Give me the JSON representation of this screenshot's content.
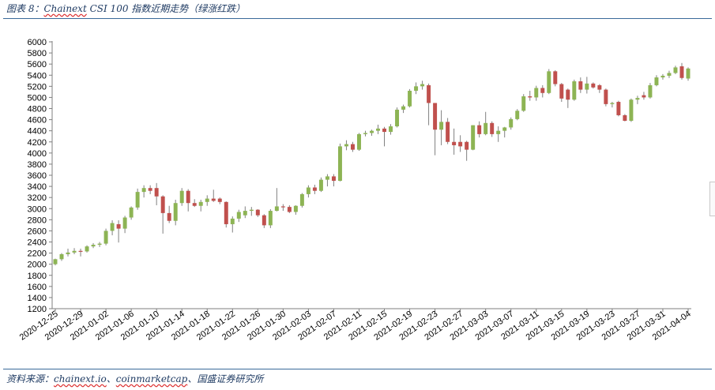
{
  "header": {
    "prefix": "图表 8：",
    "brand": "Chainext",
    "rest": " CSI 100 指数近期走势（绿涨红跌）"
  },
  "footer": {
    "prefix": "资料来源：",
    "brand1": "chainext.io",
    "sep1": "、",
    "brand2": "coinmarketcap",
    "rest": "、国盛证券研究所"
  },
  "colors": {
    "up": "#8db454",
    "down": "#c0504d",
    "wick": "#808080",
    "axis": "#7f7f7f"
  },
  "chart_data": {
    "type": "candlestick",
    "title": "Chainext CSI 100 指数近期走势（绿涨红跌）",
    "ylim": [
      1200,
      6000
    ],
    "yticks": [
      1200,
      1400,
      1600,
      1800,
      2000,
      2200,
      2400,
      2600,
      2800,
      3000,
      3200,
      3400,
      3600,
      3800,
      4000,
      4200,
      4400,
      4600,
      4800,
      5000,
      5200,
      5400,
      5600,
      5800,
      6000
    ],
    "xtick_labels": [
      "2020-12-25",
      "2020-12-29",
      "2021-01-02",
      "2021-01-06",
      "2021-01-10",
      "2021-01-14",
      "2021-01-18",
      "2021-01-22",
      "2021-01-26",
      "2021-01-30",
      "2021-02-03",
      "2021-02-07",
      "2021-02-11",
      "2021-02-15",
      "2021-02-19",
      "2021-02-23",
      "2021-02-27",
      "2021-03-03",
      "2021-03-07",
      "2021-03-11",
      "2021-03-15",
      "2021-03-19",
      "2021-03-23",
      "2021-03-27",
      "2021-03-31",
      "2021-04-04"
    ],
    "grid": false,
    "legend": "none",
    "candles": [
      {
        "date": "2020-12-25",
        "o": 2000,
        "h": 2100,
        "l": 1980,
        "c": 2090
      },
      {
        "date": "2020-12-26",
        "o": 2090,
        "h": 2200,
        "l": 2060,
        "c": 2180
      },
      {
        "date": "2020-12-27",
        "o": 2180,
        "h": 2280,
        "l": 2140,
        "c": 2210
      },
      {
        "date": "2020-12-28",
        "o": 2210,
        "h": 2290,
        "l": 2180,
        "c": 2240
      },
      {
        "date": "2020-12-29",
        "o": 2240,
        "h": 2280,
        "l": 2140,
        "c": 2230
      },
      {
        "date": "2020-12-30",
        "o": 2230,
        "h": 2340,
        "l": 2210,
        "c": 2320
      },
      {
        "date": "2020-12-31",
        "o": 2320,
        "h": 2380,
        "l": 2290,
        "c": 2350
      },
      {
        "date": "2021-01-01",
        "o": 2350,
        "h": 2400,
        "l": 2310,
        "c": 2370
      },
      {
        "date": "2021-01-02",
        "o": 2370,
        "h": 2640,
        "l": 2340,
        "c": 2600
      },
      {
        "date": "2021-01-03",
        "o": 2600,
        "h": 2790,
        "l": 2520,
        "c": 2740
      },
      {
        "date": "2021-01-04",
        "o": 2720,
        "h": 2790,
        "l": 2390,
        "c": 2640
      },
      {
        "date": "2021-01-05",
        "o": 2640,
        "h": 2870,
        "l": 2560,
        "c": 2840
      },
      {
        "date": "2021-01-06",
        "o": 2840,
        "h": 3040,
        "l": 2800,
        "c": 3020
      },
      {
        "date": "2021-01-07",
        "o": 3020,
        "h": 3360,
        "l": 2980,
        "c": 3300
      },
      {
        "date": "2021-01-08",
        "o": 3300,
        "h": 3420,
        "l": 3200,
        "c": 3370
      },
      {
        "date": "2021-01-09",
        "o": 3370,
        "h": 3420,
        "l": 3260,
        "c": 3320
      },
      {
        "date": "2021-01-10",
        "o": 3370,
        "h": 3460,
        "l": 3060,
        "c": 3220
      },
      {
        "date": "2021-01-11",
        "o": 3220,
        "h": 3240,
        "l": 2550,
        "c": 2920
      },
      {
        "date": "2021-01-12",
        "o": 2920,
        "h": 3050,
        "l": 2740,
        "c": 2780
      },
      {
        "date": "2021-01-13",
        "o": 2780,
        "h": 3160,
        "l": 2700,
        "c": 3100
      },
      {
        "date": "2021-01-14",
        "o": 3100,
        "h": 3370,
        "l": 3050,
        "c": 3320
      },
      {
        "date": "2021-01-15",
        "o": 3320,
        "h": 3350,
        "l": 2950,
        "c": 3100
      },
      {
        "date": "2021-01-16",
        "o": 3100,
        "h": 3170,
        "l": 3030,
        "c": 3050
      },
      {
        "date": "2021-01-17",
        "o": 3050,
        "h": 3160,
        "l": 2950,
        "c": 3120
      },
      {
        "date": "2021-01-18",
        "o": 3120,
        "h": 3240,
        "l": 3050,
        "c": 3180
      },
      {
        "date": "2021-01-19",
        "o": 3180,
        "h": 3340,
        "l": 3120,
        "c": 3140
      },
      {
        "date": "2021-01-20",
        "o": 3180,
        "h": 3200,
        "l": 3080,
        "c": 3120
      },
      {
        "date": "2021-01-21",
        "o": 3120,
        "h": 3130,
        "l": 2660,
        "c": 2720
      },
      {
        "date": "2021-01-22",
        "o": 2720,
        "h": 2860,
        "l": 2570,
        "c": 2820
      },
      {
        "date": "2021-01-23",
        "o": 2820,
        "h": 2980,
        "l": 2760,
        "c": 2940
      },
      {
        "date": "2021-01-24",
        "o": 2880,
        "h": 3040,
        "l": 2830,
        "c": 2960
      },
      {
        "date": "2021-01-25",
        "o": 2960,
        "h": 3030,
        "l": 2870,
        "c": 2980
      },
      {
        "date": "2021-01-26",
        "o": 2980,
        "h": 2990,
        "l": 2850,
        "c": 2880
      },
      {
        "date": "2021-01-27",
        "o": 2880,
        "h": 2900,
        "l": 2650,
        "c": 2700
      },
      {
        "date": "2021-01-28",
        "o": 2700,
        "h": 2990,
        "l": 2650,
        "c": 2960
      },
      {
        "date": "2021-01-29",
        "o": 2960,
        "h": 3370,
        "l": 2950,
        "c": 3040
      },
      {
        "date": "2021-01-30",
        "o": 3040,
        "h": 3080,
        "l": 2960,
        "c": 3030
      },
      {
        "date": "2021-01-31",
        "o": 3030,
        "h": 3060,
        "l": 2920,
        "c": 2940
      },
      {
        "date": "2021-02-01",
        "o": 2940,
        "h": 3060,
        "l": 2890,
        "c": 3050
      },
      {
        "date": "2021-02-02",
        "o": 3050,
        "h": 3280,
        "l": 3020,
        "c": 3260
      },
      {
        "date": "2021-02-03",
        "o": 3260,
        "h": 3420,
        "l": 3200,
        "c": 3380
      },
      {
        "date": "2021-02-04",
        "o": 3380,
        "h": 3430,
        "l": 3260,
        "c": 3320
      },
      {
        "date": "2021-02-05",
        "o": 3320,
        "h": 3560,
        "l": 3300,
        "c": 3520
      },
      {
        "date": "2021-02-06",
        "o": 3520,
        "h": 3620,
        "l": 3400,
        "c": 3580
      },
      {
        "date": "2021-02-07",
        "o": 3580,
        "h": 3620,
        "l": 3400,
        "c": 3500
      },
      {
        "date": "2021-02-08",
        "o": 3500,
        "h": 4170,
        "l": 3490,
        "c": 4120
      },
      {
        "date": "2021-02-09",
        "o": 4120,
        "h": 4230,
        "l": 4050,
        "c": 4160
      },
      {
        "date": "2021-02-10",
        "o": 4160,
        "h": 4200,
        "l": 4020,
        "c": 4060
      },
      {
        "date": "2021-02-11",
        "o": 4060,
        "h": 4360,
        "l": 4040,
        "c": 4340
      },
      {
        "date": "2021-02-12",
        "o": 4340,
        "h": 4400,
        "l": 4300,
        "c": 4360
      },
      {
        "date": "2021-02-13",
        "o": 4360,
        "h": 4420,
        "l": 4310,
        "c": 4400
      },
      {
        "date": "2021-02-14",
        "o": 4400,
        "h": 4510,
        "l": 4340,
        "c": 4440
      },
      {
        "date": "2021-02-15",
        "o": 4440,
        "h": 4470,
        "l": 4120,
        "c": 4380
      },
      {
        "date": "2021-02-16",
        "o": 4380,
        "h": 4520,
        "l": 4330,
        "c": 4480
      },
      {
        "date": "2021-02-17",
        "o": 4480,
        "h": 4820,
        "l": 4460,
        "c": 4780
      },
      {
        "date": "2021-02-18",
        "o": 4780,
        "h": 4870,
        "l": 4720,
        "c": 4840
      },
      {
        "date": "2021-02-19",
        "o": 4840,
        "h": 5150,
        "l": 4820,
        "c": 5120
      },
      {
        "date": "2021-02-20",
        "o": 5120,
        "h": 5270,
        "l": 5060,
        "c": 5200
      },
      {
        "date": "2021-02-21",
        "o": 5200,
        "h": 5300,
        "l": 5140,
        "c": 5240
      },
      {
        "date": "2021-02-22",
        "o": 5220,
        "h": 5250,
        "l": 4500,
        "c": 4900
      },
      {
        "date": "2021-02-23",
        "o": 4900,
        "h": 4900,
        "l": 3960,
        "c": 4420
      },
      {
        "date": "2021-02-24",
        "o": 4420,
        "h": 4770,
        "l": 4140,
        "c": 4560
      },
      {
        "date": "2021-02-25",
        "o": 4560,
        "h": 4630,
        "l": 4160,
        "c": 4200
      },
      {
        "date": "2021-02-26",
        "o": 4200,
        "h": 4440,
        "l": 3970,
        "c": 4140
      },
      {
        "date": "2021-02-27",
        "o": 4200,
        "h": 4320,
        "l": 4020,
        "c": 4120
      },
      {
        "date": "2021-02-28",
        "o": 4200,
        "h": 4220,
        "l": 3860,
        "c": 4060
      },
      {
        "date": "2021-03-01",
        "o": 4060,
        "h": 4500,
        "l": 4050,
        "c": 4500
      },
      {
        "date": "2021-03-02",
        "o": 4500,
        "h": 4570,
        "l": 4280,
        "c": 4340
      },
      {
        "date": "2021-03-03",
        "o": 4340,
        "h": 4740,
        "l": 4320,
        "c": 4540
      },
      {
        "date": "2021-03-04",
        "o": 4540,
        "h": 4570,
        "l": 4290,
        "c": 4340
      },
      {
        "date": "2021-03-05",
        "o": 4340,
        "h": 4480,
        "l": 4200,
        "c": 4400
      },
      {
        "date": "2021-03-06",
        "o": 4400,
        "h": 4470,
        "l": 4280,
        "c": 4460
      },
      {
        "date": "2021-03-07",
        "o": 4460,
        "h": 4640,
        "l": 4420,
        "c": 4610
      },
      {
        "date": "2021-03-08",
        "o": 4610,
        "h": 4790,
        "l": 4590,
        "c": 4760
      },
      {
        "date": "2021-03-09",
        "o": 4760,
        "h": 5060,
        "l": 4740,
        "c": 5020
      },
      {
        "date": "2021-03-10",
        "o": 5020,
        "h": 5120,
        "l": 4940,
        "c": 5000
      },
      {
        "date": "2021-03-11",
        "o": 5000,
        "h": 5210,
        "l": 4940,
        "c": 5170
      },
      {
        "date": "2021-03-12",
        "o": 5170,
        "h": 5220,
        "l": 5000,
        "c": 5080
      },
      {
        "date": "2021-03-13",
        "o": 5080,
        "h": 5510,
        "l": 5060,
        "c": 5470
      },
      {
        "date": "2021-03-14",
        "o": 5470,
        "h": 5490,
        "l": 5200,
        "c": 5240
      },
      {
        "date": "2021-03-15",
        "o": 5240,
        "h": 5260,
        "l": 4920,
        "c": 4980
      },
      {
        "date": "2021-03-16",
        "o": 5140,
        "h": 5160,
        "l": 4810,
        "c": 4960
      },
      {
        "date": "2021-03-17",
        "o": 4960,
        "h": 5320,
        "l": 4940,
        "c": 5290
      },
      {
        "date": "2021-03-18",
        "o": 5290,
        "h": 5360,
        "l": 5080,
        "c": 5140
      },
      {
        "date": "2021-03-19",
        "o": 5140,
        "h": 5370,
        "l": 5070,
        "c": 5250
      },
      {
        "date": "2021-03-20",
        "o": 5250,
        "h": 5270,
        "l": 5160,
        "c": 5180
      },
      {
        "date": "2021-03-21",
        "o": 5220,
        "h": 5240,
        "l": 5080,
        "c": 5140
      },
      {
        "date": "2021-03-22",
        "o": 5140,
        "h": 5160,
        "l": 4840,
        "c": 4880
      },
      {
        "date": "2021-03-23",
        "o": 4880,
        "h": 4920,
        "l": 4820,
        "c": 4900
      },
      {
        "date": "2021-03-24",
        "o": 4920,
        "h": 4940,
        "l": 4660,
        "c": 4680
      },
      {
        "date": "2021-03-25",
        "o": 4680,
        "h": 4700,
        "l": 4570,
        "c": 4580
      },
      {
        "date": "2021-03-26",
        "o": 4580,
        "h": 4980,
        "l": 4560,
        "c": 4960
      },
      {
        "date": "2021-03-27",
        "o": 4960,
        "h": 5030,
        "l": 4880,
        "c": 4990
      },
      {
        "date": "2021-03-28",
        "o": 5040,
        "h": 5100,
        "l": 4960,
        "c": 5000
      },
      {
        "date": "2021-03-29",
        "o": 5000,
        "h": 5260,
        "l": 4980,
        "c": 5220
      },
      {
        "date": "2021-03-30",
        "o": 5220,
        "h": 5400,
        "l": 5200,
        "c": 5360
      },
      {
        "date": "2021-03-31",
        "o": 5360,
        "h": 5420,
        "l": 5320,
        "c": 5390
      },
      {
        "date": "2021-04-01",
        "o": 5390,
        "h": 5480,
        "l": 5350,
        "c": 5440
      },
      {
        "date": "2021-04-02",
        "o": 5440,
        "h": 5570,
        "l": 5420,
        "c": 5540
      },
      {
        "date": "2021-04-03",
        "o": 5560,
        "h": 5620,
        "l": 5320,
        "c": 5350
      },
      {
        "date": "2021-04-04",
        "o": 5340,
        "h": 5540,
        "l": 5300,
        "c": 5520
      }
    ]
  }
}
